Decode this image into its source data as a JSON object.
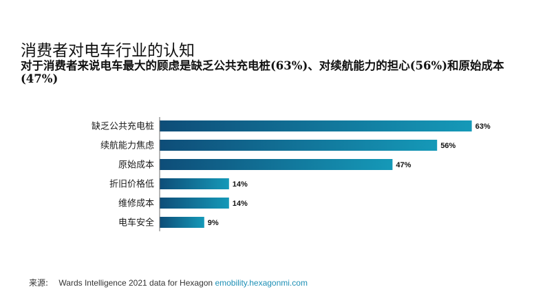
{
  "title": "消费者对电车行业的认知",
  "subtitle": "对于消费者来说电车最大的顾虑是缺乏公共充电桩(63%)、对续航能力的担心(56%)和原始成本(47%)",
  "source": {
    "label": "来源:",
    "text": "Wards Intelligence 2021 data for Hexagon",
    "link": "emobility.hexagonmi.com"
  },
  "colors": {
    "bar_start": "#0e4d78",
    "bar_end": "#1599b8",
    "axis": "#6b6b6b",
    "link": "#1d8fb5"
  },
  "chart_data": {
    "type": "bar",
    "orientation": "horizontal",
    "title": "消费者对电车行业的认知",
    "categories": [
      "缺乏公共充电桩",
      "续航能力焦虑",
      "原始成本",
      "折旧价格低",
      "维修成本",
      "电车安全"
    ],
    "values": [
      63,
      56,
      47,
      14,
      14,
      9
    ],
    "value_labels": [
      "63%",
      "56%",
      "47%",
      "14%",
      "14%",
      "9%"
    ],
    "unit": "%",
    "xlim": [
      0,
      100
    ],
    "xlabel": "",
    "ylabel": "",
    "grid": false,
    "legend": "none"
  }
}
